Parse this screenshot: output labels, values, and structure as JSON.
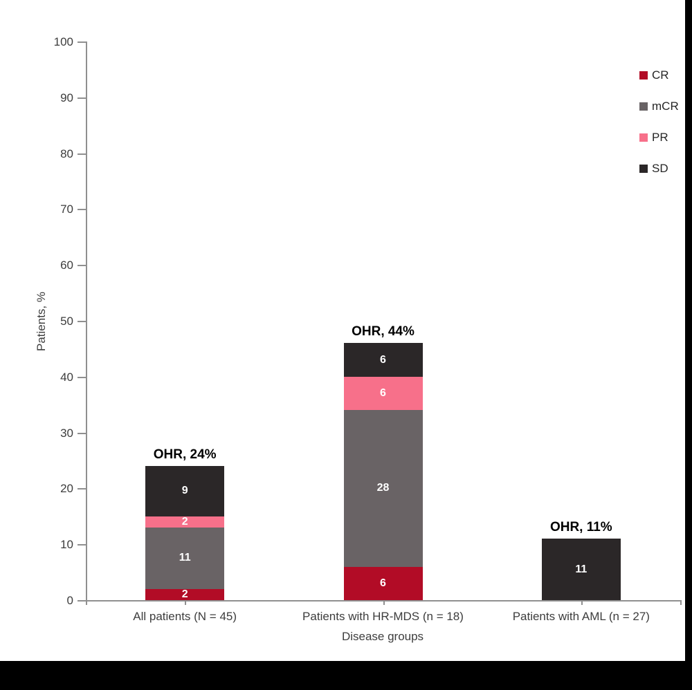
{
  "frame": {
    "background_color": "#ffffff",
    "matte_color": "#000000"
  },
  "chart_data": {
    "type": "bar",
    "stacked": true,
    "title": "",
    "xlabel": "Disease groups",
    "ylabel": "Patients, %",
    "ylim": [
      0,
      100
    ],
    "yticks": [
      0,
      10,
      20,
      30,
      40,
      50,
      60,
      70,
      80,
      90,
      100
    ],
    "grid": false,
    "legend_position": "top-right",
    "categories": [
      "All patients (N = 45)",
      "Patients with HR-MDS (n = 18)",
      "Patients with AML (n = 27)"
    ],
    "series": [
      {
        "name": "CR",
        "color": "#b20c26",
        "values": [
          2,
          6,
          0
        ]
      },
      {
        "name": "mCR",
        "color": "#696365",
        "values": [
          11,
          28,
          0
        ]
      },
      {
        "name": "PR",
        "color": "#f7708a",
        "values": [
          2,
          6,
          0
        ]
      },
      {
        "name": "SD",
        "color": "#2b2728",
        "values": [
          9,
          6,
          11
        ]
      }
    ],
    "bar_totals": [
      24,
      46,
      11
    ],
    "annotations": [
      "OHR, 24%",
      "OHR, 44%",
      "OHR, 11%"
    ],
    "text_color": "#3d3d3d",
    "axis_color": "#8f8f8f",
    "annotation_color": "#000000",
    "value_label_color": "#ffffff"
  }
}
